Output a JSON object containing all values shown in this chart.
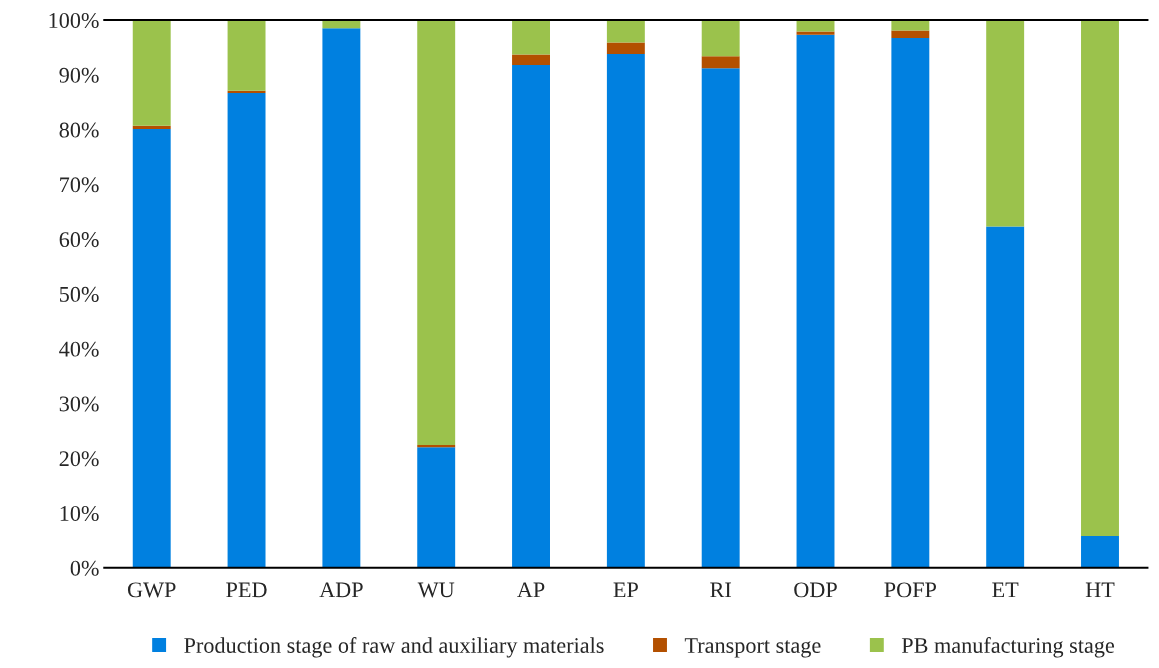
{
  "chart_data": {
    "type": "bar",
    "stacked": true,
    "categories": [
      "GWP",
      "PED",
      "ADP",
      "WU",
      "AP",
      "EP",
      "RI",
      "ODP",
      "POFP",
      "ET",
      "HT"
    ],
    "series": [
      {
        "name": "Production stage of raw and auxiliary materials",
        "color": "#0080e0",
        "values": [
          80.1,
          86.7,
          98.5,
          22.0,
          91.8,
          93.8,
          91.2,
          97.3,
          96.7,
          62.3,
          5.8
        ]
      },
      {
        "name": "Transport stage",
        "color": "#b35000",
        "values": [
          0.6,
          0.4,
          0,
          0.4,
          1.9,
          2.1,
          2.2,
          0.6,
          1.4,
          0,
          0
        ]
      },
      {
        "name": "PB manufacturing stage",
        "color": "#9bc24c",
        "values": [
          19.3,
          12.9,
          1.5,
          77.6,
          6.3,
          4.1,
          6.6,
          2.1,
          1.9,
          37.7,
          94.2
        ]
      }
    ],
    "ylim": [
      0,
      100
    ],
    "yticks": [
      {
        "value": 0,
        "label": "0%"
      },
      {
        "value": 10,
        "label": "10%"
      },
      {
        "value": 20,
        "label": "20%"
      },
      {
        "value": 30,
        "label": "30%"
      },
      {
        "value": 40,
        "label": "40%"
      },
      {
        "value": 50,
        "label": "50%"
      },
      {
        "value": 60,
        "label": "60%"
      },
      {
        "value": 70,
        "label": "70%"
      },
      {
        "value": 80,
        "label": "80%"
      },
      {
        "value": 90,
        "label": "90%"
      },
      {
        "value": 100,
        "label": "100%"
      }
    ],
    "grid": false,
    "legend": "bottom",
    "marker": "square"
  }
}
